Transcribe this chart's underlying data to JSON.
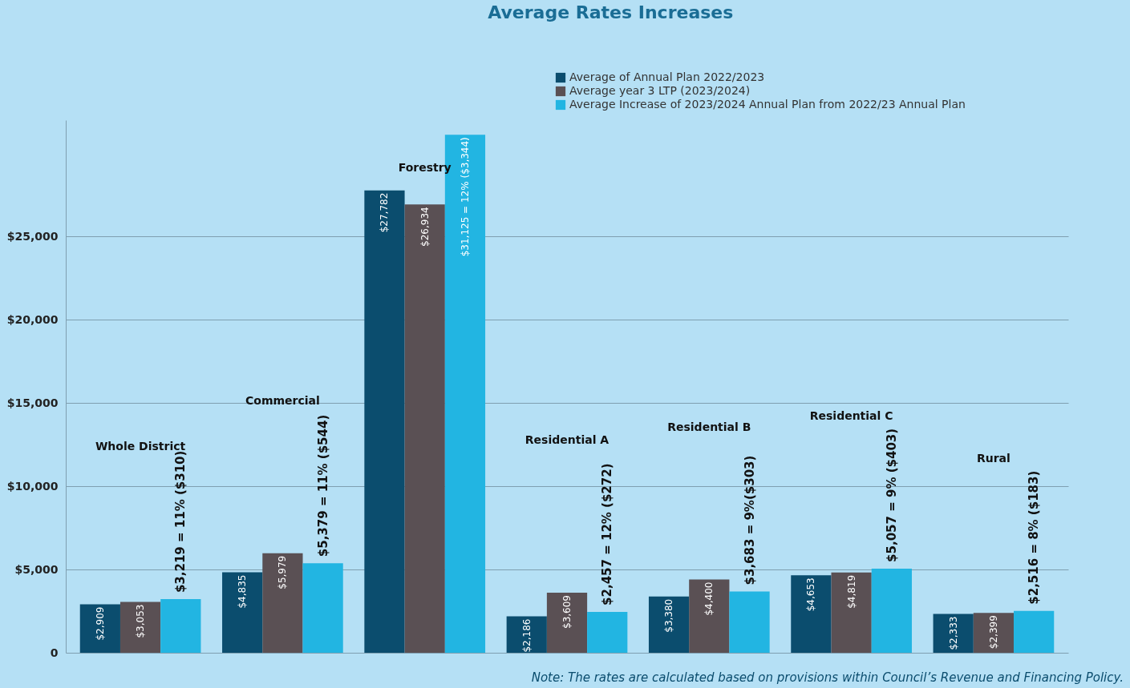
{
  "chart_data": {
    "type": "bar",
    "title": "Average Rates Increases",
    "categories": [
      "Whole District",
      "Commercial",
      "Forestry",
      "Residential A",
      "Residential B",
      "Residential C",
      "Rural"
    ],
    "series": [
      {
        "name": "Average of Annual Plan 2022/2023",
        "color": "#0b4d6e",
        "values": [
          2909,
          4835,
          27782,
          2186,
          3380,
          4653,
          2333
        ],
        "value_labels": [
          "$2,909",
          "$4,835",
          "$27,782",
          "$2,186",
          "$3,380",
          "$4,653",
          "$2,333"
        ]
      },
      {
        "name": "Average year 3 LTP (2023/2024)",
        "color": "#5a5054",
        "values": [
          3053,
          5979,
          26934,
          3609,
          4400,
          4819,
          2399
        ],
        "value_labels": [
          "$3,053",
          "$5,979",
          "$26,934",
          "$3,609",
          "$4,400",
          "$4,819",
          "$2,399"
        ]
      },
      {
        "name": "Average Increase of 2023/2024 Annual Plan from 2022/23 Annual Plan",
        "color": "#22b5e2",
        "values": [
          3219,
          5379,
          31125,
          2457,
          3683,
          5057,
          2516
        ],
        "value_labels": [
          "$3,219 = 11% ($310)",
          "$5,379 = 11% ($544)",
          "$31,125 = 12% ($3,344)",
          "$2,457 = 12% ($272)",
          "$3,683 = 9%($303)",
          "$5,057 = 9% ($403)",
          "$2,516 = 8% ($183)"
        ]
      }
    ],
    "ylim": [
      0,
      32000
    ],
    "yticks": [
      {
        "value": 0,
        "label": "0"
      },
      {
        "value": 5000,
        "label": "$5,000"
      },
      {
        "value": 10000,
        "label": "$10,000"
      },
      {
        "value": 15000,
        "label": "$15,000"
      },
      {
        "value": 20000,
        "label": "$20,000"
      },
      {
        "value": 25000,
        "label": "$25,000"
      }
    ],
    "grid": "y",
    "legend": "top right",
    "annotations": [
      "Note: The rates are calculated based on provisions within Council’s Revenue and Financing Policy."
    ]
  }
}
